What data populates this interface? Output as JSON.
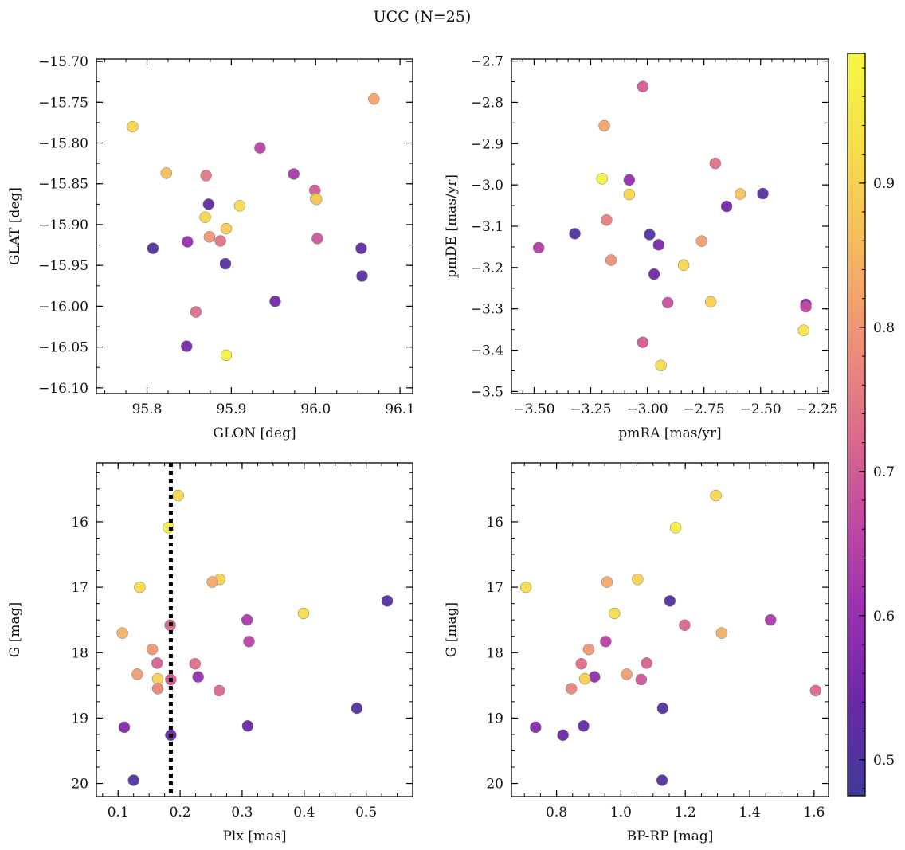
{
  "figure": {
    "title": "UCC (N=25)"
  },
  "colorbar": {
    "min": 0.475,
    "max": 0.99,
    "ticks": [
      0.5,
      0.6,
      0.7,
      0.8,
      0.9
    ],
    "tick_labels": [
      "0.5",
      "0.6",
      "0.7",
      "0.8",
      "0.9"
    ],
    "colormap": "plasma",
    "color_stops": [
      "#3f3b97",
      "#6a27a8",
      "#9a30b0",
      "#c24aa0",
      "#de6f88",
      "#ef9576",
      "#f6bd5c",
      "#f7df4a",
      "#f4f744"
    ]
  },
  "chart_data": [
    {
      "type": "scatter",
      "xlabel": "GLON [deg]",
      "ylabel": "GLAT [deg]",
      "xlim": [
        95.74,
        96.115
      ],
      "ylim": [
        -16.107,
        -15.697
      ],
      "x_ticks": [
        95.8,
        95.9,
        96.0,
        96.1
      ],
      "x_tick_labels": [
        "95.8",
        "95.9",
        "96.0",
        "96.1"
      ],
      "y_ticks": [
        -15.7,
        -15.75,
        -15.8,
        -15.85,
        -15.9,
        -15.95,
        -16.0,
        -16.05,
        -16.1
      ],
      "y_tick_labels": [
        "−15.70",
        "−15.75",
        "−15.80",
        "−15.85",
        "−15.90",
        "−15.95",
        "−16.00",
        "−16.05",
        "−16.10"
      ],
      "vline": null,
      "points": [
        {
          "x": 95.783,
          "y": -15.78,
          "c": 0.91
        },
        {
          "x": 96.069,
          "y": -15.746,
          "c": 0.82
        },
        {
          "x": 95.823,
          "y": -15.837,
          "c": 0.86
        },
        {
          "x": 95.87,
          "y": -15.84,
          "c": 0.75
        },
        {
          "x": 95.934,
          "y": -15.806,
          "c": 0.65
        },
        {
          "x": 95.974,
          "y": -15.838,
          "c": 0.63
        },
        {
          "x": 95.999,
          "y": -15.858,
          "c": 0.7
        },
        {
          "x": 96.0,
          "y": -15.868,
          "c": 0.93
        },
        {
          "x": 95.873,
          "y": -15.875,
          "c": 0.52
        },
        {
          "x": 95.91,
          "y": -15.877,
          "c": 0.92
        },
        {
          "x": 95.869,
          "y": -15.891,
          "c": 0.91
        },
        {
          "x": 95.894,
          "y": -15.905,
          "c": 0.89
        },
        {
          "x": 95.874,
          "y": -15.915,
          "c": 0.8
        },
        {
          "x": 95.887,
          "y": -15.92,
          "c": 0.74
        },
        {
          "x": 95.848,
          "y": -15.921,
          "c": 0.6
        },
        {
          "x": 96.002,
          "y": -15.917,
          "c": 0.69
        },
        {
          "x": 95.807,
          "y": -15.929,
          "c": 0.5
        },
        {
          "x": 96.054,
          "y": -15.929,
          "c": 0.53
        },
        {
          "x": 95.893,
          "y": -15.948,
          "c": 0.51
        },
        {
          "x": 96.055,
          "y": -15.963,
          "c": 0.51
        },
        {
          "x": 95.952,
          "y": -15.994,
          "c": 0.55
        },
        {
          "x": 95.858,
          "y": -16.007,
          "c": 0.73
        },
        {
          "x": 95.847,
          "y": -16.049,
          "c": 0.56
        },
        {
          "x": 95.894,
          "y": -16.06,
          "c": 0.97
        },
        {
          "x": 96.001,
          "y": -15.869,
          "c": 0.88
        }
      ]
    },
    {
      "type": "scatter",
      "xlabel": "pmRA [mas/yr]",
      "ylabel": "pmDE [mas/yr]",
      "xlim": [
        -3.6,
        -2.2
      ],
      "ylim": [
        -3.505,
        -2.695
      ],
      "x_ticks": [
        -3.5,
        -3.25,
        -3.0,
        -2.75,
        -2.5,
        -2.25
      ],
      "x_tick_labels": [
        "−3.50",
        "−3.25",
        "−3.00",
        "−2.75",
        "−2.50",
        "−2.25"
      ],
      "y_ticks": [
        -2.7,
        -2.8,
        -2.9,
        -3.0,
        -3.1,
        -3.2,
        -3.3,
        -3.4,
        -3.5
      ],
      "y_tick_labels": [
        "−2.7",
        "−2.8",
        "−2.9",
        "−3.0",
        "−3.1",
        "−3.2",
        "−3.3",
        "−3.4",
        "−3.5"
      ],
      "vline": null,
      "points": [
        {
          "x": -3.02,
          "y": -2.762,
          "c": 0.7
        },
        {
          "x": -3.19,
          "y": -2.857,
          "c": 0.82
        },
        {
          "x": -2.7,
          "y": -2.948,
          "c": 0.74
        },
        {
          "x": -3.2,
          "y": -2.985,
          "c": 0.97
        },
        {
          "x": -3.08,
          "y": -2.988,
          "c": 0.6
        },
        {
          "x": -3.08,
          "y": -3.023,
          "c": 0.91
        },
        {
          "x": -2.59,
          "y": -3.022,
          "c": 0.87
        },
        {
          "x": -2.49,
          "y": -3.021,
          "c": 0.51
        },
        {
          "x": -2.65,
          "y": -3.052,
          "c": 0.55
        },
        {
          "x": -3.18,
          "y": -3.085,
          "c": 0.76
        },
        {
          "x": -3.32,
          "y": -3.118,
          "c": 0.5
        },
        {
          "x": -2.99,
          "y": -3.12,
          "c": 0.51
        },
        {
          "x": -2.76,
          "y": -3.136,
          "c": 0.81
        },
        {
          "x": -2.95,
          "y": -3.145,
          "c": 0.56
        },
        {
          "x": -3.48,
          "y": -3.152,
          "c": 0.64
        },
        {
          "x": -3.16,
          "y": -3.182,
          "c": 0.79
        },
        {
          "x": -2.84,
          "y": -3.194,
          "c": 0.91
        },
        {
          "x": -2.97,
          "y": -3.216,
          "c": 0.55
        },
        {
          "x": -2.91,
          "y": -3.285,
          "c": 0.68
        },
        {
          "x": -2.72,
          "y": -3.283,
          "c": 0.9
        },
        {
          "x": -2.3,
          "y": -3.289,
          "c": 0.56
        },
        {
          "x": -2.3,
          "y": -3.295,
          "c": 0.67
        },
        {
          "x": -2.31,
          "y": -3.352,
          "c": 0.93
        },
        {
          "x": -3.02,
          "y": -3.381,
          "c": 0.7
        },
        {
          "x": -2.94,
          "y": -3.437,
          "c": 0.92
        }
      ]
    },
    {
      "type": "scatter",
      "xlabel": "Plx [mas]",
      "ylabel": "G [mag]",
      "xlim": [
        0.065,
        0.575
      ],
      "ylim": [
        20.2,
        15.1
      ],
      "y_inverted": true,
      "x_ticks": [
        0.1,
        0.2,
        0.3,
        0.4,
        0.5
      ],
      "x_tick_labels": [
        "0.1",
        "0.2",
        "0.3",
        "0.4",
        "0.5"
      ],
      "y_ticks": [
        16,
        17,
        18,
        19,
        20
      ],
      "y_tick_labels": [
        "16",
        "17",
        "18",
        "19",
        "20"
      ],
      "vline": 0.185,
      "points": [
        {
          "x": 0.197,
          "y": 15.6,
          "c": 0.91
        },
        {
          "x": 0.181,
          "y": 16.09,
          "c": 0.97
        },
        {
          "x": 0.135,
          "y": 17.0,
          "c": 0.92
        },
        {
          "x": 0.264,
          "y": 16.88,
          "c": 0.9
        },
        {
          "x": 0.252,
          "y": 16.92,
          "c": 0.83
        },
        {
          "x": 0.534,
          "y": 17.21,
          "c": 0.51
        },
        {
          "x": 0.399,
          "y": 17.4,
          "c": 0.92
        },
        {
          "x": 0.308,
          "y": 17.5,
          "c": 0.63
        },
        {
          "x": 0.184,
          "y": 17.58,
          "c": 0.72
        },
        {
          "x": 0.107,
          "y": 17.7,
          "c": 0.84
        },
        {
          "x": 0.311,
          "y": 17.83,
          "c": 0.65
        },
        {
          "x": 0.155,
          "y": 17.95,
          "c": 0.8
        },
        {
          "x": 0.163,
          "y": 18.16,
          "c": 0.71
        },
        {
          "x": 0.224,
          "y": 18.17,
          "c": 0.73
        },
        {
          "x": 0.131,
          "y": 18.33,
          "c": 0.81
        },
        {
          "x": 0.229,
          "y": 18.37,
          "c": 0.59
        },
        {
          "x": 0.164,
          "y": 18.4,
          "c": 0.9
        },
        {
          "x": 0.185,
          "y": 18.41,
          "c": 0.69
        },
        {
          "x": 0.164,
          "y": 18.55,
          "c": 0.77
        },
        {
          "x": 0.263,
          "y": 18.58,
          "c": 0.72
        },
        {
          "x": 0.485,
          "y": 18.85,
          "c": 0.51
        },
        {
          "x": 0.309,
          "y": 19.12,
          "c": 0.53
        },
        {
          "x": 0.11,
          "y": 19.14,
          "c": 0.57
        },
        {
          "x": 0.185,
          "y": 19.26,
          "c": 0.54
        },
        {
          "x": 0.125,
          "y": 19.95,
          "c": 0.5
        }
      ]
    },
    {
      "type": "scatter",
      "xlabel": "BP-RP [mag]",
      "ylabel": "G [mag]",
      "xlim": [
        0.66,
        1.645
      ],
      "ylim": [
        20.2,
        15.1
      ],
      "y_inverted": true,
      "x_ticks": [
        0.8,
        1.0,
        1.2,
        1.4,
        1.6
      ],
      "x_tick_labels": [
        "0.8",
        "1.0",
        "1.2",
        "1.4",
        "1.6"
      ],
      "y_ticks": [
        16,
        17,
        18,
        19,
        20
      ],
      "y_tick_labels": [
        "16",
        "17",
        "18",
        "19",
        "20"
      ],
      "vline": null,
      "points": [
        {
          "x": 1.295,
          "y": 15.6,
          "c": 0.91
        },
        {
          "x": 1.17,
          "y": 16.09,
          "c": 0.97
        },
        {
          "x": 0.705,
          "y": 17.0,
          "c": 0.92
        },
        {
          "x": 1.052,
          "y": 16.88,
          "c": 0.9
        },
        {
          "x": 0.957,
          "y": 16.92,
          "c": 0.83
        },
        {
          "x": 1.152,
          "y": 17.21,
          "c": 0.51
        },
        {
          "x": 0.98,
          "y": 17.4,
          "c": 0.92
        },
        {
          "x": 1.465,
          "y": 17.5,
          "c": 0.63
        },
        {
          "x": 1.198,
          "y": 17.58,
          "c": 0.72
        },
        {
          "x": 1.313,
          "y": 17.7,
          "c": 0.84
        },
        {
          "x": 0.953,
          "y": 17.83,
          "c": 0.65
        },
        {
          "x": 0.9,
          "y": 17.95,
          "c": 0.8
        },
        {
          "x": 1.08,
          "y": 18.16,
          "c": 0.71
        },
        {
          "x": 0.877,
          "y": 18.17,
          "c": 0.73
        },
        {
          "x": 1.018,
          "y": 18.33,
          "c": 0.81
        },
        {
          "x": 0.918,
          "y": 18.37,
          "c": 0.59
        },
        {
          "x": 0.888,
          "y": 18.4,
          "c": 0.9
        },
        {
          "x": 1.063,
          "y": 18.41,
          "c": 0.69
        },
        {
          "x": 0.846,
          "y": 18.55,
          "c": 0.77
        },
        {
          "x": 1.605,
          "y": 18.58,
          "c": 0.72
        },
        {
          "x": 1.13,
          "y": 18.85,
          "c": 0.51
        },
        {
          "x": 0.884,
          "y": 19.12,
          "c": 0.53
        },
        {
          "x": 0.735,
          "y": 19.14,
          "c": 0.57
        },
        {
          "x": 0.82,
          "y": 19.26,
          "c": 0.54
        },
        {
          "x": 1.128,
          "y": 19.95,
          "c": 0.5
        }
      ]
    }
  ]
}
